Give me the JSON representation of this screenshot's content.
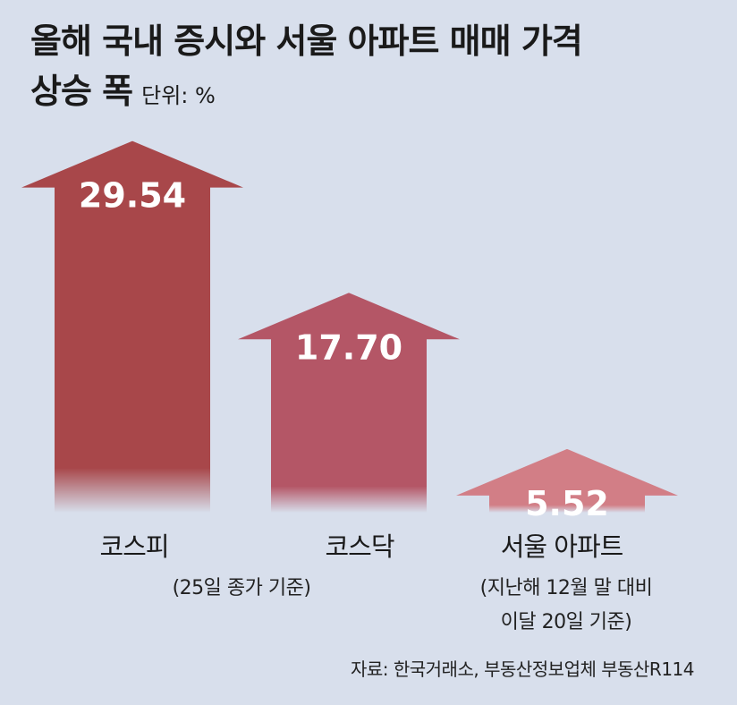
{
  "title": {
    "line1": "올해 국내 증시와 서울 아파트 매매 가격",
    "line2": "상승 폭",
    "unit": "단위: %"
  },
  "source": "자료: 한국거래소, 부동산정보업체 부동산R114",
  "colors": {
    "background": "#d8dfec",
    "kospi": "#a8474a",
    "kosdaq": "#b45666",
    "seoul": "#d27e86",
    "value_text": "#ffffff"
  },
  "chart_data": {
    "type": "bar",
    "categories": [
      "코스피",
      "코스닥",
      "서울 아파트"
    ],
    "values": [
      29.54,
      17.7,
      5.52
    ],
    "value_labels": [
      "29.54",
      "17.70",
      "5.52"
    ],
    "notes": [
      "(25일 종가 기준)",
      "",
      "(지난해 12월 말 대비\n이달 20일 기준)"
    ],
    "ylim": [
      0,
      30
    ],
    "grid": false,
    "legend": "none"
  }
}
